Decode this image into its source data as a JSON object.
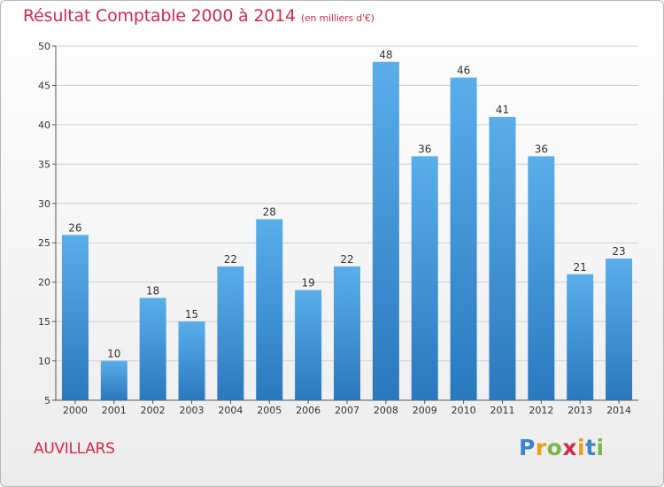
{
  "title": {
    "main": "Résultat Comptable 2000 à 2014",
    "unit": "(en milliers d'€)"
  },
  "place": "AUVILLARS",
  "logo": {
    "letters": [
      {
        "ch": "P",
        "color": "#3a86c8"
      },
      {
        "ch": "r",
        "color": "#e8a020"
      },
      {
        "ch": "o",
        "color": "#7ab648"
      },
      {
        "ch": "x",
        "color": "#d12a4d"
      },
      {
        "ch": "i",
        "color": "#e8a020"
      },
      {
        "ch": "t",
        "color": "#3a86c8"
      },
      {
        "ch": "i",
        "color": "#7ab648"
      }
    ]
  },
  "chart_data": {
    "type": "bar",
    "title": "Résultat Comptable 2000 à 2014",
    "ylabel": "en milliers d'€",
    "xlabel": "",
    "categories": [
      "2000",
      "2001",
      "2002",
      "2003",
      "2004",
      "2005",
      "2006",
      "2007",
      "2008",
      "2009",
      "2010",
      "2011",
      "2012",
      "2013",
      "2014"
    ],
    "values": [
      26,
      10,
      18,
      15,
      22,
      28,
      19,
      22,
      48,
      36,
      46,
      41,
      36,
      21,
      23
    ],
    "ylim": [
      5,
      50
    ],
    "yticks": [
      5,
      10,
      15,
      20,
      25,
      30,
      35,
      40,
      45,
      50
    ],
    "grid": true,
    "colors": {
      "bar_light": "#5aaeea",
      "bar_dark": "#2a78be",
      "grid": "#cfcfcf"
    }
  }
}
